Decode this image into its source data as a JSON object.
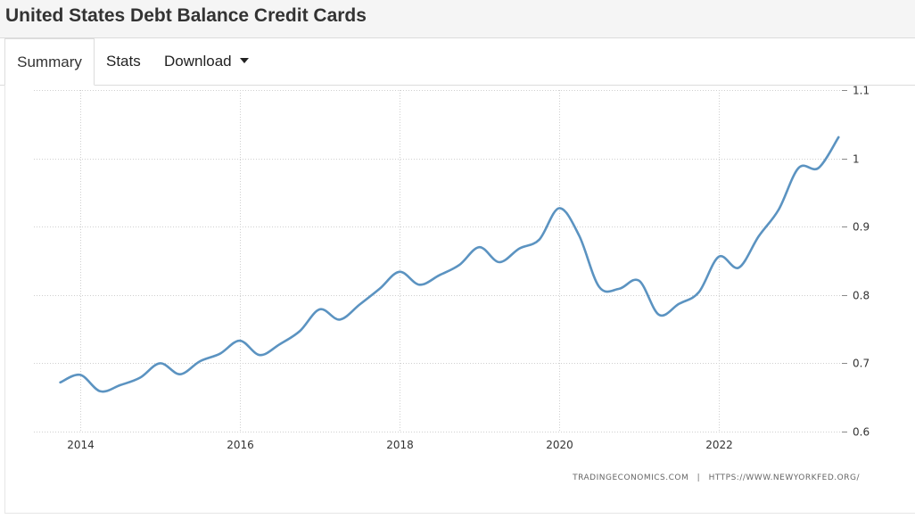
{
  "header": {
    "title": "United States Debt Balance Credit Cards"
  },
  "tabs": {
    "summary": "Summary",
    "stats": "Stats",
    "download": "Download"
  },
  "source": {
    "left": "TRADINGECONOMICS.COM",
    "separator": "|",
    "right": "HTTPS://WWW.NEWYORKFED.ORG/"
  },
  "colors": {
    "line": "#5b93c1",
    "grid": "#cfcfcf"
  },
  "chart_data": {
    "type": "line",
    "title": "United States Debt Balance Credit Cards",
    "xlabel": "",
    "ylabel": "",
    "xlim": [
      2013.5,
      2023.9
    ],
    "ylim": [
      0.6,
      1.1
    ],
    "y_ticks": [
      0.6,
      0.7,
      0.8,
      0.9,
      1,
      1.1
    ],
    "y_tick_labels": [
      "0.6",
      "0.7",
      "0.8",
      "0.9",
      "1",
      "1.1"
    ],
    "x_ticks": [
      2014,
      2016,
      2018,
      2020,
      2022
    ],
    "x_tick_labels": [
      "2014",
      "2016",
      "2018",
      "2020",
      "2022"
    ],
    "grid": true,
    "y_axis_side": "right",
    "series": [
      {
        "x": [
          2013.75,
          2014.0,
          2014.25,
          2014.5,
          2014.75,
          2015.0,
          2015.25,
          2015.5,
          2015.75,
          2016.0,
          2016.25,
          2016.5,
          2016.75,
          2017.0,
          2017.25,
          2017.5,
          2017.75,
          2018.0,
          2018.25,
          2018.5,
          2018.75,
          2019.0,
          2019.25,
          2019.5,
          2019.75,
          2020.0,
          2020.25,
          2020.5,
          2020.75,
          2021.0,
          2021.25,
          2021.5,
          2021.75,
          2022.0,
          2022.25,
          2022.5,
          2022.75,
          2023.0,
          2023.25,
          2023.5
        ],
        "values": [
          0.672,
          0.683,
          0.659,
          0.668,
          0.679,
          0.7,
          0.684,
          0.703,
          0.714,
          0.733,
          0.712,
          0.728,
          0.747,
          0.779,
          0.764,
          0.786,
          0.809,
          0.834,
          0.815,
          0.829,
          0.844,
          0.87,
          0.848,
          0.868,
          0.881,
          0.927,
          0.887,
          0.812,
          0.809,
          0.821,
          0.771,
          0.787,
          0.804,
          0.856,
          0.84,
          0.886,
          0.925,
          0.986,
          0.986,
          1.031
        ]
      }
    ]
  }
}
